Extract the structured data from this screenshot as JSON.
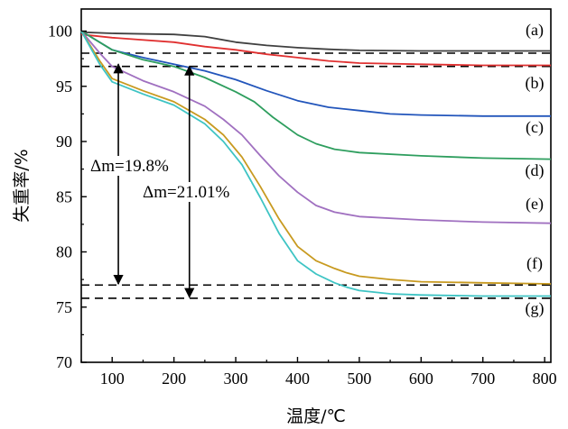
{
  "chart_data": {
    "type": "line",
    "xlabel": "温度/℃",
    "ylabel": "失重率/%",
    "xlim": [
      50,
      810
    ],
    "ylim": [
      70,
      102
    ],
    "xticks": [
      100,
      200,
      300,
      400,
      500,
      600,
      700,
      800
    ],
    "yticks": [
      70,
      75,
      80,
      85,
      90,
      95,
      100
    ],
    "grid": false,
    "series": [
      {
        "name": "(a)",
        "color": "#404040",
        "x": [
          50,
          100,
          200,
          250,
          300,
          350,
          400,
          450,
          500,
          600,
          700,
          810
        ],
        "y": [
          99.9,
          99.8,
          99.7,
          99.5,
          99.0,
          98.7,
          98.5,
          98.35,
          98.25,
          98.2,
          98.2,
          98.2
        ]
      },
      {
        "name": "(b)",
        "color": "#e03030",
        "x": [
          50,
          100,
          200,
          250,
          300,
          350,
          400,
          450,
          500,
          600,
          700,
          810
        ],
        "y": [
          99.7,
          99.4,
          99.0,
          98.6,
          98.3,
          97.9,
          97.6,
          97.3,
          97.1,
          97.0,
          96.9,
          96.9
        ]
      },
      {
        "name": "(c)",
        "color": "#2255bb",
        "x": [
          50,
          100,
          150,
          200,
          250,
          300,
          350,
          400,
          450,
          500,
          550,
          600,
          700,
          810
        ],
        "y": [
          100,
          98.3,
          97.6,
          97.0,
          96.4,
          95.6,
          94.6,
          93.7,
          93.1,
          92.8,
          92.5,
          92.4,
          92.3,
          92.3
        ]
      },
      {
        "name": "(d)",
        "color": "#2e9e5e",
        "x": [
          50,
          100,
          150,
          200,
          250,
          300,
          330,
          360,
          400,
          430,
          460,
          500,
          600,
          700,
          810
        ],
        "y": [
          100,
          98.3,
          97.4,
          96.8,
          95.8,
          94.5,
          93.6,
          92.2,
          90.6,
          89.8,
          89.3,
          89.0,
          88.7,
          88.5,
          88.4
        ]
      },
      {
        "name": "(e)",
        "color": "#a070c0",
        "x": [
          50,
          80,
          100,
          150,
          200,
          250,
          280,
          310,
          340,
          370,
          400,
          430,
          460,
          500,
          600,
          700,
          810
        ],
        "y": [
          100,
          98.0,
          96.8,
          95.5,
          94.5,
          93.2,
          92.0,
          90.6,
          88.7,
          86.9,
          85.4,
          84.2,
          83.6,
          83.2,
          82.9,
          82.7,
          82.6
        ]
      },
      {
        "name": "(f)",
        "color": "#c89a20",
        "x": [
          50,
          80,
          100,
          150,
          200,
          250,
          280,
          310,
          340,
          370,
          400,
          430,
          460,
          480,
          500,
          550,
          600,
          700,
          810
        ],
        "y": [
          100,
          97.3,
          95.7,
          94.6,
          93.6,
          92.0,
          90.6,
          88.6,
          85.9,
          83.0,
          80.5,
          79.2,
          78.5,
          78.1,
          77.8,
          77.5,
          77.3,
          77.2,
          77.1
        ]
      },
      {
        "name": "(g)",
        "color": "#3ec4c4",
        "x": [
          50,
          80,
          100,
          150,
          200,
          250,
          280,
          310,
          340,
          370,
          400,
          430,
          460,
          480,
          500,
          550,
          600,
          700,
          810
        ],
        "y": [
          100,
          97.0,
          95.4,
          94.3,
          93.3,
          91.6,
          90.0,
          87.9,
          84.9,
          81.7,
          79.2,
          78.0,
          77.2,
          76.8,
          76.5,
          76.2,
          76.1,
          76.0,
          76.0
        ]
      }
    ],
    "reference_lines": [
      98.0,
      96.8,
      77.0,
      75.8
    ],
    "annotations": [
      {
        "text": "Δm=19.8%",
        "x": 110,
        "y_from": 97.0,
        "y_to": 77.1
      },
      {
        "text": "Δm=21.01%",
        "x": 225,
        "y_from": 96.8,
        "y_to": 75.9
      }
    ]
  }
}
